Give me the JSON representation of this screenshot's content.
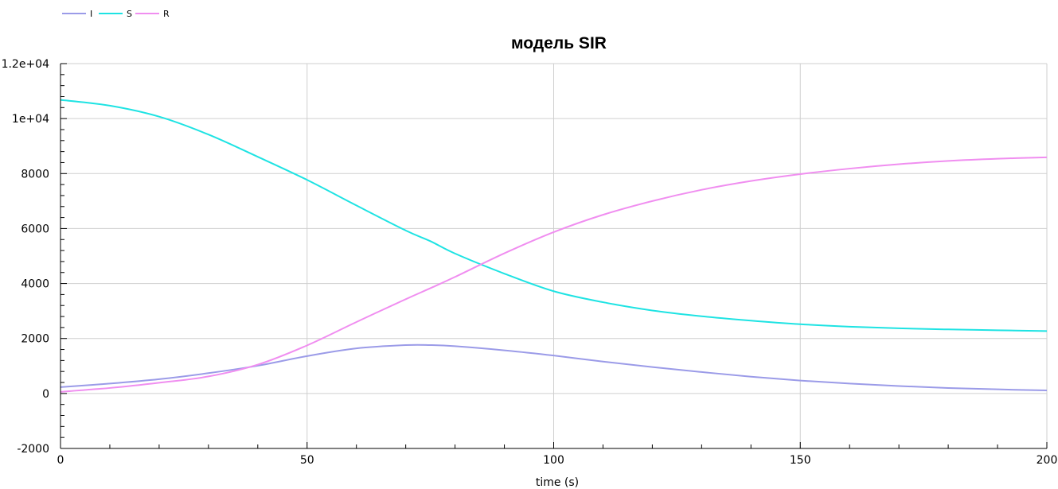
{
  "chart_data": {
    "type": "line",
    "title": "модель SIR",
    "xlabel": "time (s)",
    "ylabel": "",
    "xlim": [
      0,
      200
    ],
    "ylim": [
      -2000,
      12000
    ],
    "grid": true,
    "legend_position": "top-left",
    "x_ticks": [
      0,
      50,
      100,
      150,
      200
    ],
    "x_tick_labels": [
      "0",
      "50",
      "100",
      "150",
      "200"
    ],
    "y_ticks": [
      -2000,
      0,
      2000,
      4000,
      6000,
      8000,
      10000,
      12000
    ],
    "y_tick_labels": [
      "-2000",
      "0",
      "2000",
      "4000",
      "6000",
      "8000",
      "1e+04",
      "1.2e+04"
    ],
    "x": [
      0,
      10,
      20,
      30,
      40,
      50,
      60,
      70,
      75,
      80,
      90,
      100,
      110,
      120,
      130,
      140,
      150,
      160,
      170,
      180,
      190,
      200
    ],
    "series": [
      {
        "name": "I",
        "color": "#9b9be8",
        "values": [
          230,
          360,
          520,
          740,
          1010,
          1360,
          1640,
          1760,
          1760,
          1720,
          1570,
          1380,
          1160,
          960,
          780,
          610,
          470,
          360,
          270,
          200,
          150,
          110
        ]
      },
      {
        "name": "S",
        "color": "#1ee3e3",
        "values": [
          10680,
          10470,
          10070,
          9420,
          8610,
          7770,
          6840,
          5930,
          5540,
          5090,
          4360,
          3720,
          3320,
          3020,
          2810,
          2650,
          2520,
          2430,
          2370,
          2330,
          2300,
          2270
        ]
      },
      {
        "name": "R",
        "color": "#f08ef0",
        "values": [
          60,
          200,
          390,
          620,
          1050,
          1750,
          2600,
          3430,
          3830,
          4240,
          5100,
          5870,
          6500,
          7000,
          7410,
          7730,
          7980,
          8180,
          8340,
          8460,
          8540,
          8590
        ]
      }
    ]
  }
}
